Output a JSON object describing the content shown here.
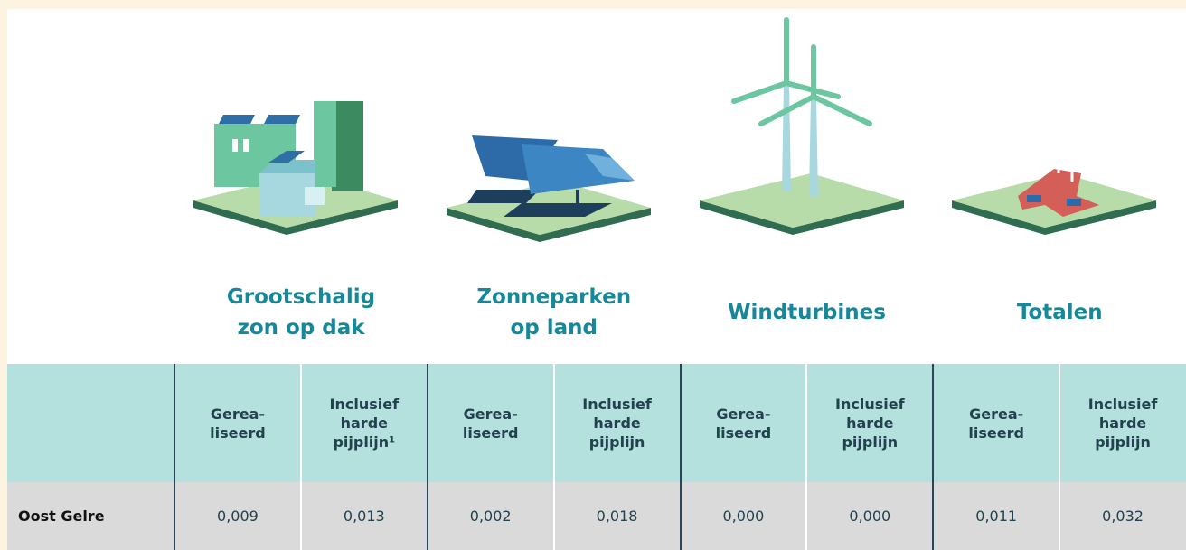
{
  "groups": [
    {
      "title_lines": [
        "Grootschalig",
        "zon op dak"
      ],
      "subheaders": [
        [
          "Gerea-",
          "liseerd"
        ],
        [
          "Inclusief",
          "harde",
          "pijplijn¹"
        ]
      ]
    },
    {
      "title_lines": [
        "Zonneparken",
        "op land"
      ],
      "subheaders": [
        [
          "Gerea-",
          "liseerd"
        ],
        [
          "Inclusief",
          "harde",
          "pijplijn"
        ]
      ]
    },
    {
      "title_lines": [
        "Windturbines"
      ],
      "subheaders": [
        [
          "Gerea-",
          "liseerd"
        ],
        [
          "Inclusief",
          "harde",
          "pijplijn"
        ]
      ]
    },
    {
      "title_lines": [
        "Totalen"
      ],
      "subheaders": [
        [
          "Gerea-",
          "liseerd"
        ],
        [
          "Inclusief",
          "harde",
          "pijplijn"
        ]
      ]
    }
  ],
  "rows": [
    {
      "label": "Oost Gelre",
      "cells": [
        "0,009",
        "0,013",
        "0,002",
        "0,018",
        "0,000",
        "0,000",
        "0,011",
        "0,032"
      ]
    }
  ]
}
